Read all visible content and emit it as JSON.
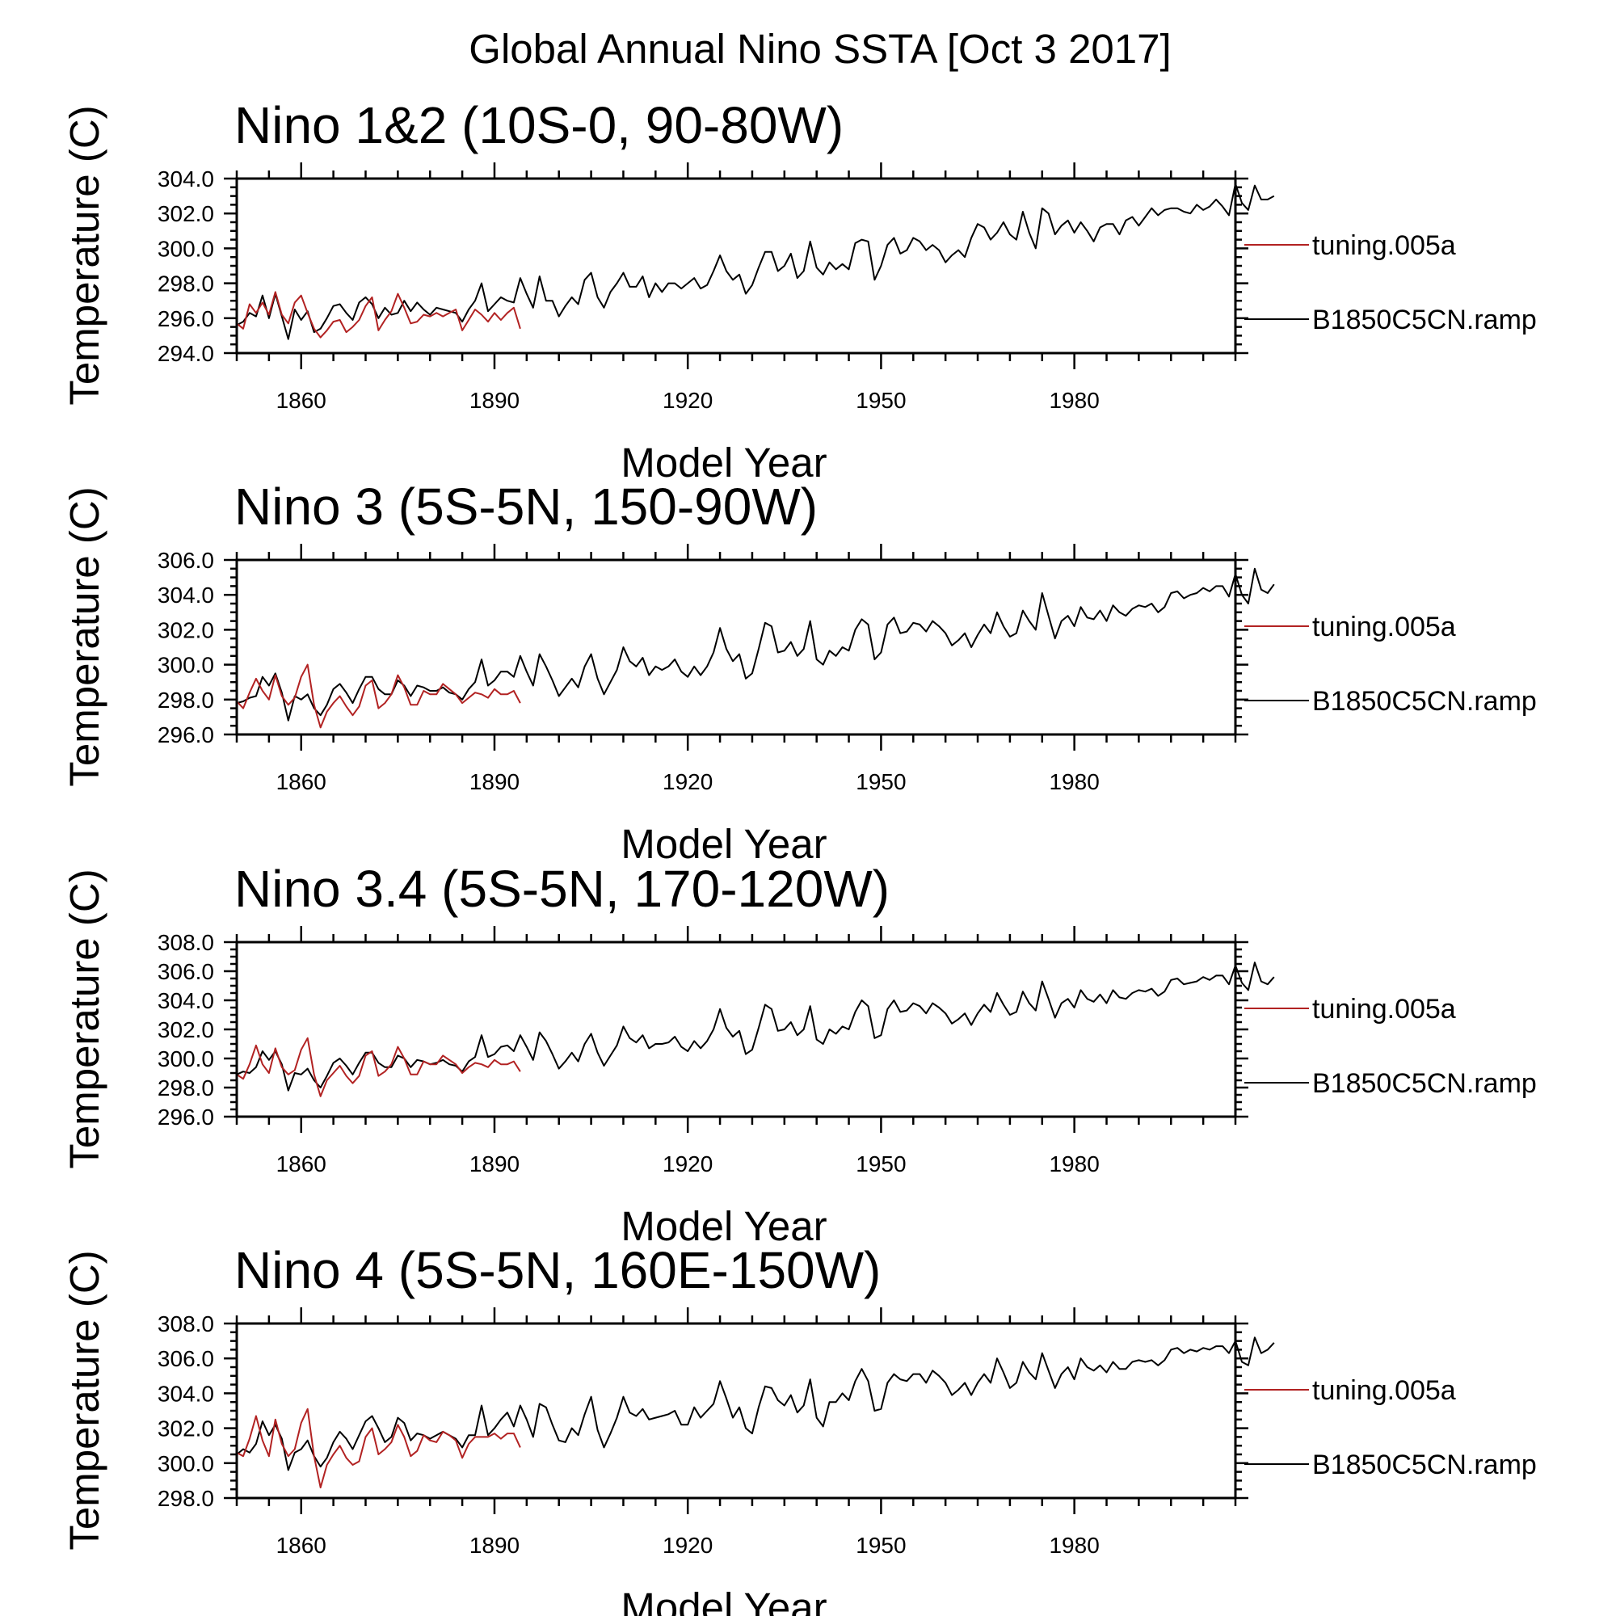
{
  "figure": {
    "title": "Global Annual Nino SSTA [Oct  3 2017]"
  },
  "chart_data": [
    {
      "type": "line",
      "title": "Nino 1&2 (10S-0, 90-80W)",
      "xlabel": "Model Year",
      "ylabel": "Temperature (C)",
      "xlim": [
        1850,
        2005
      ],
      "ylim": [
        294.0,
        304.0
      ],
      "x_major_ticks": [
        1860,
        1890,
        1920,
        1950,
        1980
      ],
      "y_ticks": [
        "294.0",
        "296.0",
        "298.0",
        "300.0",
        "302.0",
        "304.0"
      ],
      "legend_position": "right",
      "series": [
        {
          "name": "B1850C5CN.ramp",
          "color": "#000000",
          "x_start": 1850,
          "values": [
            295.6,
            295.8,
            296.3,
            296.1,
            297.3,
            296.0,
            297.4,
            296.1,
            294.8,
            296.5,
            295.9,
            296.4,
            295.2,
            295.4,
            296.0,
            296.7,
            296.8,
            296.3,
            295.9,
            296.9,
            297.2,
            296.8,
            296.0,
            296.6,
            296.2,
            296.3,
            297.0,
            296.4,
            296.9,
            296.5,
            296.2,
            296.6,
            296.5,
            296.4,
            296.3,
            295.8,
            296.5,
            297.0,
            298.0,
            296.4,
            296.8,
            297.2,
            297.0,
            296.9,
            298.3,
            297.4,
            296.6,
            298.4,
            297.0,
            297.0,
            296.1,
            296.7,
            297.2,
            296.8,
            298.2,
            298.6,
            297.2,
            296.6,
            297.5,
            298.0,
            298.6,
            297.8,
            297.8,
            298.4,
            297.2,
            298.0,
            297.5,
            298.0,
            298.0,
            297.7,
            298.0,
            298.3,
            297.7,
            297.9,
            298.7,
            299.6,
            298.7,
            298.2,
            298.5,
            297.4,
            297.9,
            298.9,
            299.8,
            299.8,
            298.7,
            299.0,
            299.7,
            298.3,
            298.7,
            300.4,
            298.9,
            298.5,
            299.2,
            298.8,
            299.1,
            298.8,
            300.3,
            300.5,
            300.4,
            298.2,
            299.0,
            300.2,
            300.6,
            299.7,
            299.9,
            300.6,
            300.4,
            299.9,
            300.2,
            299.9,
            299.2,
            299.6,
            299.9,
            299.5,
            300.6,
            301.4,
            301.2,
            300.5,
            300.9,
            301.5,
            300.8,
            300.5,
            302.1,
            300.9,
            300.0,
            302.3,
            302.0,
            300.8,
            301.3,
            301.6,
            300.9,
            301.5,
            301.0,
            300.4,
            301.2,
            301.4,
            301.4,
            300.8,
            301.6,
            301.8,
            301.3,
            301.8,
            302.3,
            301.9,
            302.2,
            302.3,
            302.3,
            302.1,
            302.0,
            302.5,
            302.2,
            302.4,
            302.8,
            302.4,
            301.9,
            303.7,
            302.6,
            302.2,
            303.6,
            302.8,
            302.8,
            303.0
          ]
        },
        {
          "name": "tuning.005a",
          "color": "#b22222",
          "x_start": 1850,
          "values": [
            295.7,
            295.4,
            296.8,
            296.3,
            296.9,
            296.2,
            297.5,
            296.2,
            295.7,
            296.9,
            297.3,
            296.3,
            295.4,
            294.9,
            295.3,
            295.8,
            295.9,
            295.2,
            295.5,
            295.9,
            296.7,
            297.2,
            295.3,
            295.9,
            296.4,
            297.4,
            296.6,
            295.7,
            295.8,
            296.2,
            296.1,
            296.3,
            296.1,
            296.3,
            296.5,
            295.3,
            295.9,
            296.5,
            296.2,
            295.8,
            296.3,
            295.9,
            296.3,
            296.6,
            295.4
          ]
        }
      ]
    },
    {
      "type": "line",
      "title": "Nino 3 (5S-5N, 150-90W)",
      "xlabel": "Model Year",
      "ylabel": "Temperature (C)",
      "xlim": [
        1850,
        2005
      ],
      "ylim": [
        296.0,
        306.0
      ],
      "x_major_ticks": [
        1860,
        1890,
        1920,
        1950,
        1980
      ],
      "y_ticks": [
        "296.0",
        "298.0",
        "300.0",
        "302.0",
        "304.0",
        "306.0"
      ],
      "legend_position": "right",
      "series": [
        {
          "name": "B1850C5CN.ramp",
          "color": "#000000",
          "x_start": 1850,
          "values": [
            297.8,
            297.9,
            298.1,
            298.2,
            299.3,
            298.8,
            299.5,
            298.4,
            296.8,
            298.2,
            298.0,
            298.3,
            297.5,
            297.1,
            297.7,
            298.6,
            298.9,
            298.4,
            297.8,
            298.6,
            299.3,
            299.3,
            298.6,
            298.3,
            298.3,
            299.1,
            298.8,
            298.2,
            298.8,
            298.7,
            298.5,
            298.5,
            298.7,
            298.4,
            298.3,
            298.0,
            298.6,
            299.0,
            300.3,
            298.8,
            299.1,
            299.6,
            299.6,
            299.3,
            300.5,
            299.6,
            298.8,
            300.6,
            299.9,
            299.1,
            298.2,
            298.7,
            299.2,
            298.7,
            299.9,
            300.6,
            299.2,
            298.3,
            299.0,
            299.7,
            301.0,
            300.2,
            299.9,
            300.4,
            299.4,
            299.9,
            299.7,
            299.9,
            300.3,
            299.6,
            299.3,
            299.9,
            299.4,
            299.9,
            300.7,
            302.1,
            300.9,
            300.2,
            300.6,
            299.2,
            299.5,
            300.9,
            302.4,
            302.2,
            300.7,
            300.8,
            301.3,
            300.5,
            300.9,
            302.5,
            300.3,
            300.0,
            300.8,
            300.5,
            301.0,
            300.8,
            302.0,
            302.6,
            302.3,
            300.3,
            300.7,
            302.3,
            302.7,
            301.8,
            301.9,
            302.4,
            302.3,
            301.9,
            302.5,
            302.2,
            301.8,
            301.1,
            301.4,
            301.8,
            301.0,
            301.7,
            302.3,
            301.8,
            303.0,
            302.2,
            301.6,
            301.8,
            303.1,
            302.5,
            302.0,
            304.1,
            302.8,
            301.5,
            302.5,
            302.8,
            302.2,
            303.3,
            302.7,
            302.6,
            303.1,
            302.5,
            303.4,
            303.0,
            302.8,
            303.2,
            303.4,
            303.3,
            303.5,
            303.0,
            303.3,
            304.1,
            304.2,
            303.8,
            304.0,
            304.1,
            304.4,
            304.2,
            304.5,
            304.5,
            303.9,
            305.2,
            304.0,
            303.5,
            305.5,
            304.3,
            304.1,
            304.6
          ]
        },
        {
          "name": "tuning.005a",
          "color": "#b22222",
          "x_start": 1850,
          "values": [
            297.9,
            297.5,
            298.4,
            299.2,
            298.5,
            298.0,
            299.4,
            298.2,
            297.7,
            298.1,
            299.3,
            300.0,
            297.7,
            296.4,
            297.3,
            297.8,
            298.2,
            297.6,
            297.1,
            297.6,
            298.8,
            299.1,
            297.5,
            297.8,
            298.3,
            299.4,
            298.7,
            297.7,
            297.7,
            298.5,
            298.3,
            298.3,
            298.9,
            298.6,
            298.3,
            297.8,
            298.1,
            298.4,
            298.3,
            298.1,
            298.6,
            298.3,
            298.3,
            298.5,
            297.8
          ]
        }
      ]
    },
    {
      "type": "line",
      "title": "Nino 3.4 (5S-5N, 170-120W)",
      "xlabel": "Model Year",
      "ylabel": "Temperature (C)",
      "xlim": [
        1850,
        2005
      ],
      "ylim": [
        296.0,
        308.0
      ],
      "x_major_ticks": [
        1860,
        1890,
        1920,
        1950,
        1980
      ],
      "y_ticks": [
        "296.0",
        "298.0",
        "300.0",
        "302.0",
        "304.0",
        "306.0",
        "308.0"
      ],
      "legend_position": "right",
      "series": [
        {
          "name": "B1850C5CN.ramp",
          "color": "#000000",
          "x_start": 1850,
          "values": [
            298.9,
            299.1,
            299.0,
            299.4,
            300.5,
            299.9,
            300.5,
            299.6,
            297.8,
            299.0,
            298.9,
            299.3,
            298.5,
            298.0,
            298.8,
            299.7,
            300.0,
            299.5,
            298.9,
            299.7,
            300.4,
            300.4,
            299.7,
            299.4,
            299.4,
            300.2,
            300.0,
            299.4,
            299.9,
            299.8,
            299.6,
            299.7,
            299.9,
            299.6,
            299.5,
            299.1,
            299.8,
            300.1,
            301.6,
            300.1,
            300.3,
            300.8,
            300.9,
            300.5,
            301.6,
            300.8,
            299.9,
            301.8,
            301.2,
            300.3,
            299.3,
            299.8,
            300.4,
            299.8,
            301.0,
            301.7,
            300.4,
            299.5,
            300.2,
            300.9,
            302.2,
            301.4,
            301.1,
            301.6,
            300.7,
            301.0,
            301.0,
            301.1,
            301.5,
            300.8,
            300.5,
            301.2,
            300.7,
            301.2,
            302.0,
            303.4,
            302.1,
            301.5,
            301.9,
            300.3,
            300.6,
            302.1,
            303.7,
            303.4,
            301.9,
            302.0,
            302.5,
            301.6,
            302.0,
            303.6,
            301.3,
            301.0,
            302.0,
            301.7,
            302.2,
            302.0,
            303.2,
            304.0,
            303.6,
            301.4,
            301.6,
            303.4,
            304.0,
            303.2,
            303.3,
            303.8,
            303.6,
            303.1,
            303.8,
            303.5,
            303.1,
            302.4,
            302.7,
            303.1,
            302.3,
            303.1,
            303.7,
            303.2,
            304.5,
            303.7,
            303.0,
            303.2,
            304.6,
            303.8,
            303.3,
            305.3,
            304.1,
            302.8,
            303.8,
            304.1,
            303.5,
            304.7,
            304.1,
            303.9,
            304.4,
            303.8,
            304.7,
            304.2,
            304.1,
            304.5,
            304.7,
            304.6,
            304.8,
            304.3,
            304.6,
            305.4,
            305.5,
            305.1,
            305.2,
            305.3,
            305.6,
            305.4,
            305.7,
            305.7,
            305.1,
            306.4,
            305.2,
            304.7,
            306.6,
            305.3,
            305.1,
            305.6
          ]
        },
        {
          "name": "tuning.005a",
          "color": "#b22222",
          "x_start": 1850,
          "values": [
            298.9,
            298.6,
            299.6,
            300.9,
            299.6,
            299.0,
            300.7,
            299.4,
            298.9,
            299.2,
            300.6,
            301.4,
            298.9,
            297.4,
            298.5,
            299.0,
            299.5,
            298.8,
            298.3,
            298.8,
            300.2,
            300.5,
            298.8,
            299.1,
            299.6,
            300.8,
            300.0,
            298.9,
            298.9,
            299.8,
            299.6,
            299.6,
            300.2,
            299.9,
            299.6,
            299.0,
            299.4,
            299.7,
            299.6,
            299.4,
            299.9,
            299.6,
            299.6,
            299.8,
            299.1
          ]
        }
      ]
    },
    {
      "type": "line",
      "title": "Nino 4 (5S-5N, 160E-150W)",
      "xlabel": "Model Year",
      "ylabel": "Temperature (C)",
      "xlim": [
        1850,
        2005
      ],
      "ylim": [
        298.0,
        308.0
      ],
      "x_major_ticks": [
        1860,
        1890,
        1920,
        1950,
        1980
      ],
      "y_ticks": [
        "298.0",
        "300.0",
        "302.0",
        "304.0",
        "306.0",
        "308.0"
      ],
      "legend_position": "right",
      "series": [
        {
          "name": "B1850C5CN.ramp",
          "color": "#000000",
          "x_start": 1850,
          "values": [
            300.5,
            300.8,
            300.6,
            301.1,
            302.4,
            301.6,
            302.2,
            301.4,
            299.6,
            300.6,
            300.8,
            301.3,
            300.4,
            299.8,
            300.3,
            301.2,
            301.8,
            301.4,
            300.8,
            301.6,
            302.4,
            302.7,
            302.0,
            301.2,
            301.5,
            302.6,
            302.3,
            301.3,
            301.7,
            301.6,
            301.4,
            301.6,
            301.8,
            301.6,
            301.4,
            300.9,
            301.6,
            301.6,
            303.3,
            301.6,
            302.0,
            302.5,
            302.9,
            302.1,
            303.3,
            302.5,
            301.5,
            303.4,
            303.2,
            302.2,
            301.3,
            301.2,
            302.0,
            301.6,
            302.8,
            303.8,
            301.9,
            300.9,
            301.7,
            302.6,
            303.8,
            302.9,
            302.7,
            303.1,
            302.5,
            302.6,
            302.7,
            302.8,
            303.0,
            302.2,
            302.2,
            303.2,
            302.6,
            303.0,
            303.4,
            304.7,
            303.7,
            302.6,
            303.2,
            302.0,
            301.7,
            303.2,
            304.4,
            304.3,
            303.6,
            303.3,
            303.9,
            302.9,
            303.3,
            304.8,
            302.6,
            302.1,
            303.5,
            303.5,
            304.0,
            303.6,
            304.7,
            305.4,
            304.7,
            303.0,
            303.1,
            304.6,
            305.1,
            304.8,
            304.7,
            305.1,
            305.1,
            304.6,
            305.3,
            305.0,
            304.6,
            303.9,
            304.2,
            304.6,
            303.9,
            304.6,
            305.1,
            304.6,
            306.0,
            305.2,
            304.3,
            304.6,
            305.8,
            305.2,
            304.8,
            306.3,
            305.3,
            304.3,
            305.1,
            305.5,
            304.8,
            306.0,
            305.5,
            305.3,
            305.6,
            305.2,
            305.8,
            305.4,
            305.4,
            305.8,
            305.9,
            305.8,
            305.9,
            305.6,
            305.9,
            306.5,
            306.6,
            306.3,
            306.5,
            306.4,
            306.6,
            306.5,
            306.7,
            306.7,
            306.3,
            307.0,
            305.8,
            305.6,
            307.2,
            306.3,
            306.5,
            306.9
          ]
        },
        {
          "name": "tuning.005a",
          "color": "#b22222",
          "x_start": 1850,
          "values": [
            300.6,
            300.4,
            301.4,
            302.7,
            301.3,
            300.4,
            302.5,
            301.1,
            300.4,
            300.8,
            302.3,
            303.1,
            300.4,
            298.6,
            299.9,
            300.5,
            301.0,
            300.3,
            299.9,
            300.1,
            301.5,
            302.0,
            300.5,
            300.8,
            301.2,
            302.2,
            301.5,
            300.4,
            300.7,
            301.6,
            301.3,
            301.2,
            301.8,
            301.6,
            301.3,
            300.3,
            301.1,
            301.5,
            301.5,
            301.5,
            301.7,
            301.4,
            301.7,
            301.7,
            300.9
          ]
        }
      ]
    }
  ]
}
